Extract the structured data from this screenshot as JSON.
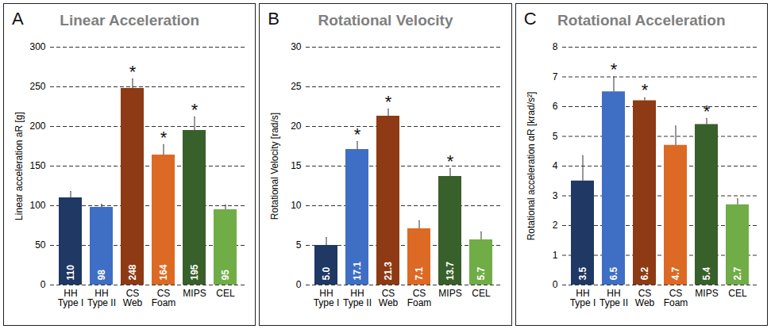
{
  "chart_data": [
    {
      "type": "bar",
      "title": "Linear Acceleration",
      "annotations": [
        "A"
      ],
      "y_label": "Linear acceleration aR [g]",
      "categories": [
        "HH Type I",
        "HH Type II",
        "CS Web",
        "CS Foam",
        "MIPS",
        "CEL"
      ],
      "values": [
        110,
        98,
        248,
        164,
        195,
        95
      ],
      "errors": [
        8,
        4,
        12,
        13,
        17,
        6
      ],
      "significance": [
        null,
        null,
        "*",
        "*",
        "*",
        null
      ],
      "colors": [
        "#1f3864",
        "#3f6fc4",
        "#8e3a14",
        "#dc6a24",
        "#38602a",
        "#70ad47"
      ],
      "ylim": [
        0,
        300
      ],
      "yticks": [
        0,
        50,
        100,
        150,
        200,
        250,
        300
      ],
      "grid": true,
      "data_labels": true
    },
    {
      "type": "bar",
      "title": "Rotational Velocity",
      "annotations": [
        "B"
      ],
      "y_label": "Rotational Velocity [rad/s]",
      "categories": [
        "HH Type I",
        "HH Type II",
        "CS Web",
        "CS Foam",
        "MIPS",
        "CEL"
      ],
      "values": [
        5.0,
        17.1,
        21.3,
        7.1,
        13.7,
        5.7
      ],
      "value_labels": [
        "5.0",
        "17.1",
        "21.3",
        "7.1",
        "13.7",
        "5.7"
      ],
      "errors": [
        1.0,
        1.0,
        0.9,
        1.0,
        1.0,
        1.0
      ],
      "significance": [
        null,
        "*",
        "*",
        null,
        "*",
        null
      ],
      "colors": [
        "#1f3864",
        "#3f6fc4",
        "#8e3a14",
        "#dc6a24",
        "#38602a",
        "#70ad47"
      ],
      "ylim": [
        0,
        30
      ],
      "yticks": [
        0,
        5,
        10,
        15,
        20,
        25,
        30
      ],
      "grid": true,
      "data_labels": true
    },
    {
      "type": "bar",
      "title": "Rotational Acceleration",
      "annotations": [
        "C"
      ],
      "y_label": "Rotational acceleration αR [krad/s²]",
      "categories": [
        "HH Type I",
        "HH Type II",
        "CS Web",
        "CS Foam",
        "MIPS",
        "CEL"
      ],
      "values": [
        3.5,
        6.5,
        6.2,
        4.7,
        5.4,
        2.7
      ],
      "errors": [
        0.85,
        0.5,
        0.1,
        0.65,
        0.2,
        0.2
      ],
      "significance": [
        null,
        "*",
        "*",
        null,
        "*",
        null
      ],
      "colors": [
        "#1f3864",
        "#3f6fc4",
        "#8e3a14",
        "#dc6a24",
        "#38602a",
        "#70ad47"
      ],
      "ylim": [
        0,
        8
      ],
      "yticks": [
        0,
        1,
        2,
        3,
        4,
        5,
        6,
        7,
        8
      ],
      "grid": true,
      "data_labels": true
    }
  ]
}
